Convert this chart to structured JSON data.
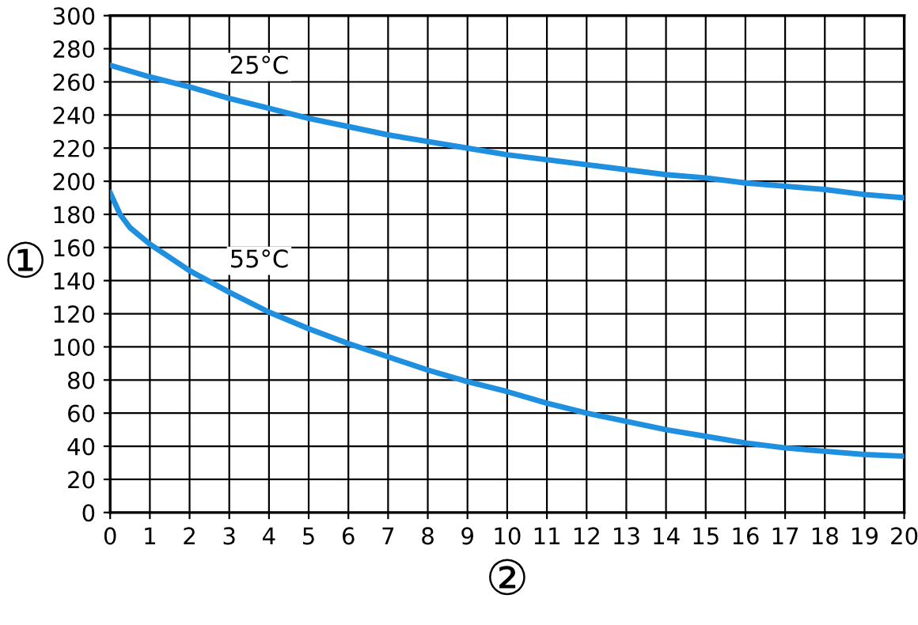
{
  "chart_data": {
    "type": "line",
    "xlabel": "②",
    "ylabel": "①",
    "series": [
      {
        "color": "#1f8fe0",
        "x": [
          0,
          1,
          2,
          3,
          4,
          5,
          6,
          7,
          8,
          9,
          10,
          11,
          12,
          13,
          14,
          15,
          16,
          17,
          18,
          19,
          20
        ],
        "values": [
          270,
          263,
          257,
          250,
          244,
          238,
          233,
          228,
          224,
          220,
          216,
          213,
          210,
          207,
          204,
          202,
          199,
          197,
          195,
          192,
          190
        ]
      },
      {
        "color": "#1f8fe0",
        "x": [
          0,
          0.25,
          0.5,
          1,
          2,
          3,
          4,
          5,
          6,
          7,
          8,
          9,
          10,
          11,
          12,
          13,
          14,
          15,
          16,
          17,
          18,
          19,
          20
        ],
        "values": [
          193,
          180,
          172,
          162,
          146,
          133,
          121,
          111,
          102,
          94,
          86,
          79,
          73,
          66,
          60,
          55,
          50,
          46,
          42,
          39,
          37,
          35,
          34
        ]
      }
    ],
    "annotations": [
      "25°C",
      "55°C"
    ],
    "xlim": [
      0,
      20
    ],
    "xticks": [
      0,
      1,
      2,
      3,
      4,
      5,
      6,
      7,
      8,
      9,
      10,
      11,
      12,
      13,
      14,
      15,
      16,
      17,
      18,
      19,
      20
    ],
    "ylim": [
      0,
      300
    ],
    "yticks": [
      0,
      20,
      40,
      60,
      80,
      100,
      120,
      140,
      160,
      180,
      200,
      220,
      240,
      260,
      280,
      300
    ],
    "grid": true,
    "legend": false,
    "marker": "none",
    "line_style": "solid"
  }
}
